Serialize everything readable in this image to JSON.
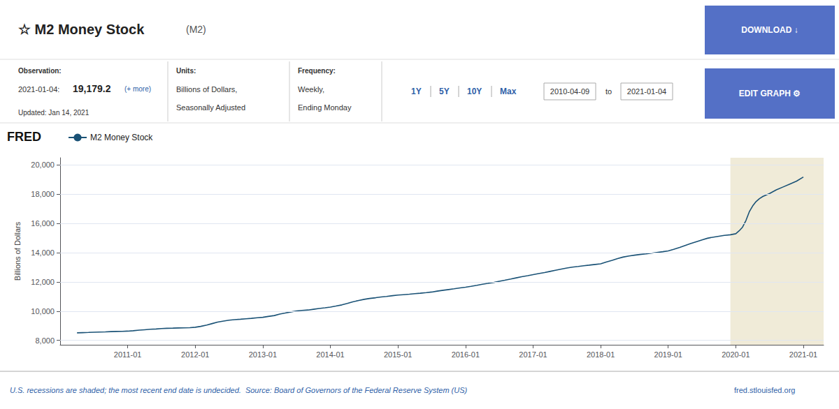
{
  "chart_data": {
    "type": "line",
    "title": "☆ M2 Money Stock",
    "subtitle": "(M2)",
    "ylabel": "Billions of Dollars",
    "x": [
      2010.25,
      2010.33,
      2010.42,
      2010.5,
      2010.58,
      2010.67,
      2010.75,
      2010.83,
      2010.92,
      2011.0,
      2011.08,
      2011.17,
      2011.25,
      2011.33,
      2011.42,
      2011.5,
      2011.58,
      2011.67,
      2011.75,
      2011.83,
      2011.92,
      2012.0,
      2012.08,
      2012.17,
      2012.25,
      2012.33,
      2012.42,
      2012.5,
      2012.58,
      2012.67,
      2012.75,
      2012.83,
      2012.92,
      2013.0,
      2013.08,
      2013.17,
      2013.25,
      2013.33,
      2013.42,
      2013.5,
      2013.58,
      2013.67,
      2013.75,
      2013.83,
      2013.92,
      2014.0,
      2014.08,
      2014.17,
      2014.25,
      2014.33,
      2014.42,
      2014.5,
      2014.58,
      2014.67,
      2014.75,
      2014.83,
      2014.92,
      2015.0,
      2015.08,
      2015.17,
      2015.25,
      2015.33,
      2015.42,
      2015.5,
      2015.58,
      2015.67,
      2015.75,
      2015.83,
      2015.92,
      2016.0,
      2016.08,
      2016.17,
      2016.25,
      2016.33,
      2016.42,
      2016.5,
      2016.58,
      2016.67,
      2016.75,
      2016.83,
      2016.92,
      2017.0,
      2017.08,
      2017.17,
      2017.25,
      2017.33,
      2017.42,
      2017.5,
      2017.58,
      2017.67,
      2017.75,
      2017.83,
      2017.92,
      2018.0,
      2018.08,
      2018.17,
      2018.25,
      2018.33,
      2018.42,
      2018.5,
      2018.58,
      2018.67,
      2018.75,
      2018.83,
      2018.92,
      2019.0,
      2019.08,
      2019.17,
      2019.25,
      2019.33,
      2019.42,
      2019.5,
      2019.58,
      2019.67,
      2019.75,
      2019.83,
      2019.92,
      2020.0,
      2020.05,
      2020.1,
      2020.15,
      2020.2,
      2020.25,
      2020.3,
      2020.35,
      2020.4,
      2020.5,
      2020.6,
      2020.7,
      2020.8,
      2020.9,
      2021.0
    ],
    "series": [
      {
        "name": "M2 Money Stock",
        "color": "#1a5276",
        "values": [
          8516,
          8530,
          8545,
          8560,
          8575,
          8585,
          8600,
          8615,
          8620,
          8635,
          8660,
          8700,
          8730,
          8760,
          8780,
          8810,
          8830,
          8840,
          8850,
          8860,
          8870,
          8900,
          8960,
          9050,
          9150,
          9250,
          9320,
          9380,
          9420,
          9450,
          9480,
          9510,
          9550,
          9580,
          9640,
          9700,
          9800,
          9870,
          9950,
          10020,
          10050,
          10080,
          10130,
          10180,
          10230,
          10280,
          10350,
          10430,
          10530,
          10640,
          10730,
          10810,
          10870,
          10920,
          10970,
          11010,
          11060,
          11100,
          11130,
          11160,
          11200,
          11230,
          11270,
          11310,
          11370,
          11430,
          11480,
          11530,
          11590,
          11640,
          11700,
          11770,
          11840,
          11900,
          11970,
          12050,
          12120,
          12200,
          12280,
          12360,
          12430,
          12500,
          12570,
          12640,
          12720,
          12800,
          12880,
          12950,
          13010,
          13060,
          13110,
          13150,
          13200,
          13240,
          13360,
          13480,
          13600,
          13700,
          13780,
          13830,
          13880,
          13920,
          13970,
          14020,
          14070,
          14120,
          14230,
          14360,
          14490,
          14620,
          14760,
          14880,
          14990,
          15070,
          15130,
          15190,
          15230,
          15300,
          15500,
          15750,
          16200,
          16800,
          17200,
          17500,
          17700,
          17850,
          18050,
          18300,
          18500,
          18700,
          18900,
          19179
        ]
      }
    ],
    "xlim": [
      2010.0,
      2021.3
    ],
    "xticks": [
      {
        "value": 2011,
        "label": "2011-01"
      },
      {
        "value": 2012,
        "label": "2012-01"
      },
      {
        "value": 2013,
        "label": "2013-01"
      },
      {
        "value": 2014,
        "label": "2014-01"
      },
      {
        "value": 2015,
        "label": "2015-01"
      },
      {
        "value": 2016,
        "label": "2016-01"
      },
      {
        "value": 2017,
        "label": "2017-01"
      },
      {
        "value": 2018,
        "label": "2018-01"
      },
      {
        "value": 2019,
        "label": "2019-01"
      },
      {
        "value": 2020,
        "label": "2020-01"
      },
      {
        "value": 2021,
        "label": "2021-01"
      }
    ],
    "ylim": [
      7700,
      20500
    ],
    "yticks": [
      {
        "value": 8000,
        "label": "8,000"
      },
      {
        "value": 10000,
        "label": "10,000"
      },
      {
        "value": 12000,
        "label": "12,000"
      },
      {
        "value": 14000,
        "label": "14,000"
      },
      {
        "value": 16000,
        "label": "16,000"
      },
      {
        "value": 18000,
        "label": "18,000"
      },
      {
        "value": 20000,
        "label": "20,000"
      }
    ],
    "grid": true,
    "shaded": {
      "x": [
        2019.92,
        2021.3
      ],
      "color": "#f0ebd8"
    },
    "annotations": [
      "DOWNLOAD ↓",
      "Observation:",
      "2021-01-04:",
      "19,179.2",
      "(+ more)",
      "Updated: Jan 14, 2021",
      "Units:",
      "Billions of Dollars,",
      "Seasonally Adjusted",
      "Frequency:",
      "Weekly,",
      "Ending Monday",
      "1Y",
      "5Y",
      "10Y",
      "Max",
      "2010-04-09",
      "to",
      "2021-01-04",
      "EDIT GRAPH ⚙",
      "FRED",
      "U.S. recessions are shaded; the most recent end date is undecided.  Source: Board of Governors of the Federal Reserve System (US)",
      "fred.stlouisfed.org"
    ]
  }
}
